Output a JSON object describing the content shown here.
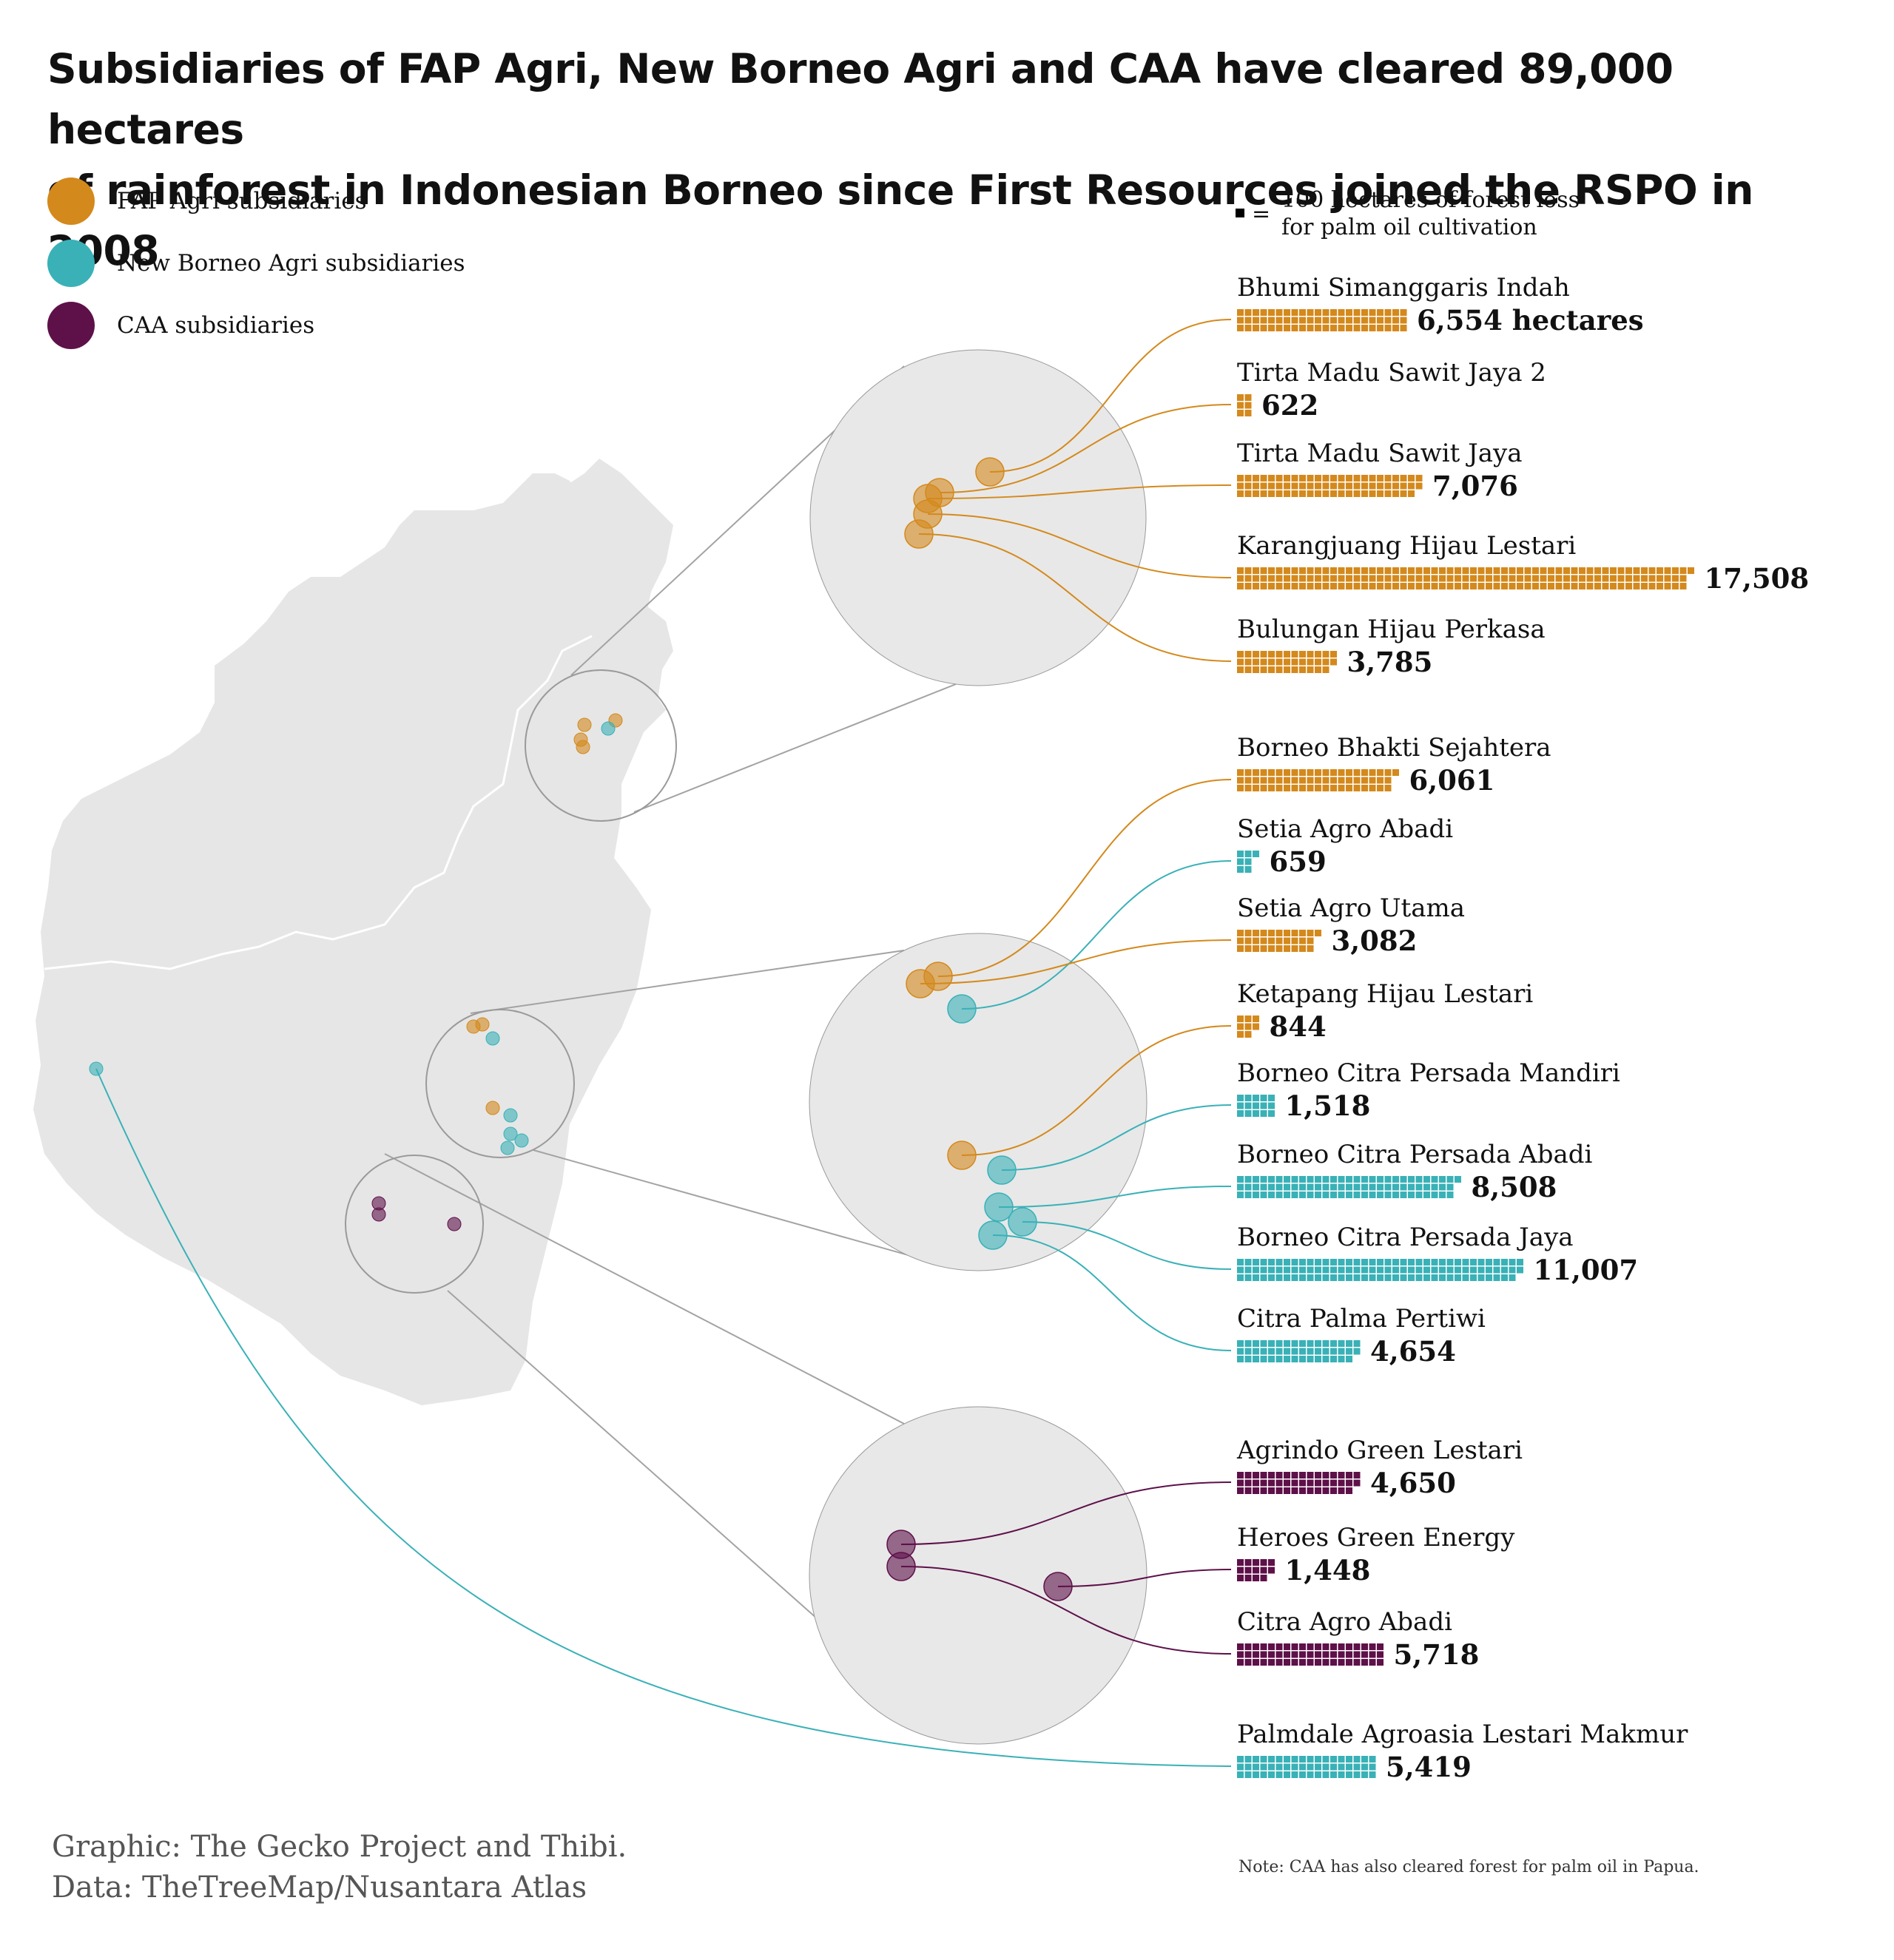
{
  "title": {
    "line1": "Subsidiaries of FAP Agri, New Borneo Agri and CAA have cleared 89,000 hectares",
    "line2": "of rainforest in Indonesian Borneo since First Resources joined the RSPO in 2008"
  },
  "legend": [
    {
      "label": "FAP Agri subsidiaries",
      "color": "#D4891C"
    },
    {
      "label": "New Borneo Agri subsidiaries",
      "color": "#39B1B7"
    },
    {
      "label": "CAA subsidiaries",
      "color": "#5E1049"
    }
  ],
  "unit_note": {
    "equals": "=",
    "line1": "100 hectares of forest loss",
    "line2": "for palm oil cultivation"
  },
  "chart_data": {
    "type": "bar",
    "unit": "hectares",
    "unit_per_square": 100,
    "series": [
      {
        "group": "FAP Agri",
        "color": "#D4891C"
      },
      {
        "group": "New Borneo Agri",
        "color": "#39B1B7"
      },
      {
        "group": "CAA",
        "color": "#5E1049"
      }
    ],
    "bars": [
      {
        "name": "Bhumi Simanggaris Indah",
        "value": 6554,
        "label": "6,554 hectares",
        "group": "FAP Agri"
      },
      {
        "name": "Tirta Madu Sawit Jaya 2",
        "value": 622,
        "label": "622",
        "group": "FAP Agri"
      },
      {
        "name": "Tirta Madu Sawit Jaya",
        "value": 7076,
        "label": "7,076",
        "group": "FAP Agri"
      },
      {
        "name": "Karangjuang Hijau Lestari",
        "value": 17508,
        "label": "17,508",
        "group": "FAP Agri"
      },
      {
        "name": "Bulungan Hijau Perkasa",
        "value": 3785,
        "label": "3,785",
        "group": "FAP Agri"
      },
      {
        "name": "Borneo Bhakti Sejahtera",
        "value": 6061,
        "label": "6,061",
        "group": "FAP Agri"
      },
      {
        "name": "Setia Agro Abadi",
        "value": 659,
        "label": "659",
        "group": "New Borneo Agri"
      },
      {
        "name": "Setia Agro Utama",
        "value": 3082,
        "label": "3,082",
        "group": "FAP Agri"
      },
      {
        "name": "Ketapang Hijau Lestari",
        "value": 844,
        "label": "844",
        "group": "FAP Agri"
      },
      {
        "name": "Borneo Citra Persada Mandiri",
        "value": 1518,
        "label": "1,518",
        "group": "New Borneo Agri"
      },
      {
        "name": "Borneo Citra Persada Abadi",
        "value": 8508,
        "label": "8,508",
        "group": "New Borneo Agri"
      },
      {
        "name": "Borneo Citra Persada Jaya",
        "value": 11007,
        "label": "11,007",
        "group": "New Borneo Agri"
      },
      {
        "name": "Citra Palma Pertiwi",
        "value": 4654,
        "label": "4,654",
        "group": "New Borneo Agri"
      },
      {
        "name": "Agrindo Green Lestari",
        "value": 4650,
        "label": "4,650",
        "group": "CAA"
      },
      {
        "name": "Heroes Green Energy",
        "value": 1448,
        "label": "1,448",
        "group": "CAA"
      },
      {
        "name": "Citra Agro Abadi",
        "value": 5718,
        "label": "5,718",
        "group": "CAA"
      },
      {
        "name": "Palmdale Agroasia Lestari Makmur",
        "value": 5419,
        "label": "5,419",
        "group": "New Borneo Agri"
      }
    ]
  },
  "map": {
    "land_color": "#E6E6E6",
    "border_color": "#ffffff",
    "inset_fill": "#E8E8E8",
    "inset_stroke": "#9a9a9a"
  },
  "credit": {
    "line1": "Graphic: The Gecko Project and Thibi.",
    "line2": "Data: TheTreeMap/Nusantara Atlas"
  },
  "note": "Note: CAA has also cleared forest for palm oil in Papua."
}
